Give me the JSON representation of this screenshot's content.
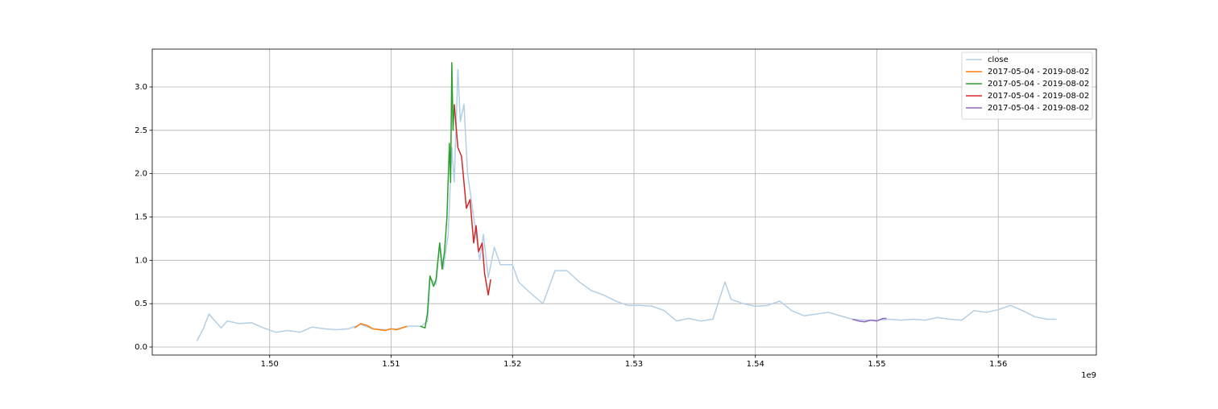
{
  "chart_data": {
    "type": "line",
    "x_offset_label": "1e9",
    "xlim": [
      1.49033,
      1.56808
    ],
    "ylim": [
      -0.0929,
      3.4365
    ],
    "xticks": [
      {
        "value": 1.5,
        "label": "1.50"
      },
      1.51,
      1.52,
      1.53,
      1.54,
      1.55,
      1.56
    ],
    "yticks": [
      {
        "value": 0,
        "label": "0.0"
      },
      0.5,
      {
        "value": 1,
        "label": "1.0"
      },
      1.5,
      {
        "value": 2,
        "label": "2.0"
      },
      2.5,
      {
        "value": 3,
        "label": "3.0"
      }
    ],
    "grid": true,
    "legend": "upper right",
    "series": [
      {
        "name": "close",
        "color": "#b3cfe6",
        "x": [
          1.494,
          1.4945,
          1.495,
          1.4955,
          1.496,
          1.4965,
          1.4975,
          1.4985,
          1.4995,
          1.5005,
          1.5015,
          1.5025,
          1.5035,
          1.5045,
          1.5055,
          1.5065,
          1.5075,
          1.5085,
          1.5095,
          1.5105,
          1.5115,
          1.5125,
          1.513,
          1.5132,
          1.5137,
          1.514,
          1.5143,
          1.5147,
          1.515,
          1.5152,
          1.5155,
          1.5157,
          1.516,
          1.5163,
          1.5167,
          1.517,
          1.5173,
          1.5176,
          1.518,
          1.5185,
          1.519,
          1.52,
          1.5205,
          1.5215,
          1.5225,
          1.5235,
          1.5245,
          1.5255,
          1.5265,
          1.5275,
          1.5285,
          1.5295,
          1.5305,
          1.5315,
          1.5325,
          1.5335,
          1.5345,
          1.5355,
          1.5365,
          1.5375,
          1.538,
          1.539,
          1.54,
          1.541,
          1.542,
          1.543,
          1.544,
          1.545,
          1.546,
          1.547,
          1.548,
          1.549,
          1.55,
          1.551,
          1.552,
          1.553,
          1.554,
          1.555,
          1.556,
          1.557,
          1.558,
          1.559,
          1.56,
          1.561,
          1.562,
          1.563,
          1.564,
          1.5648
        ],
        "values": [
          0.07,
          0.2,
          0.38,
          0.3,
          0.22,
          0.3,
          0.27,
          0.28,
          0.22,
          0.17,
          0.19,
          0.17,
          0.23,
          0.21,
          0.2,
          0.21,
          0.26,
          0.21,
          0.2,
          0.21,
          0.24,
          0.24,
          0.3,
          0.8,
          0.72,
          1.2,
          0.9,
          1.3,
          2.3,
          1.9,
          3.2,
          2.6,
          2.8,
          2.0,
          1.6,
          1.3,
          1.0,
          1.3,
          0.8,
          1.15,
          0.95,
          0.95,
          0.75,
          0.62,
          0.5,
          0.88,
          0.88,
          0.75,
          0.65,
          0.6,
          0.53,
          0.48,
          0.48,
          0.47,
          0.42,
          0.3,
          0.33,
          0.3,
          0.32,
          0.75,
          0.55,
          0.5,
          0.47,
          0.48,
          0.53,
          0.42,
          0.36,
          0.38,
          0.4,
          0.36,
          0.32,
          0.31,
          0.31,
          0.32,
          0.31,
          0.32,
          0.31,
          0.34,
          0.32,
          0.31,
          0.42,
          0.4,
          0.43,
          0.48,
          0.42,
          0.35,
          0.32,
          0.32
        ]
      },
      {
        "name": "2017-05-04 - 2019-08-02",
        "color": "#ff7f0e",
        "x": [
          1.507,
          1.5075,
          1.508,
          1.5085,
          1.509,
          1.5095,
          1.51,
          1.5105,
          1.5113
        ],
        "values": [
          0.22,
          0.27,
          0.25,
          0.21,
          0.2,
          0.19,
          0.21,
          0.2,
          0.24
        ]
      },
      {
        "name": "2017-05-04 - 2019-08-02",
        "color": "#2ca02c",
        "x": [
          1.5124,
          1.5128,
          1.513,
          1.5132,
          1.5135,
          1.5137,
          1.514,
          1.5142,
          1.5144,
          1.5146,
          1.5148,
          1.5149,
          1.515,
          1.5151,
          1.5152
        ],
        "values": [
          0.24,
          0.22,
          0.4,
          0.82,
          0.7,
          0.78,
          1.2,
          0.9,
          1.1,
          1.5,
          2.35,
          1.9,
          3.28,
          2.5,
          2.8
        ]
      },
      {
        "name": "2017-05-04 - 2019-08-02",
        "color": "#d62728",
        "x": [
          1.5152,
          1.5155,
          1.5158,
          1.516,
          1.5162,
          1.5165,
          1.5168,
          1.517,
          1.5172,
          1.5175,
          1.5177,
          1.518,
          1.5182
        ],
        "values": [
          2.8,
          2.3,
          2.2,
          1.9,
          1.6,
          1.7,
          1.2,
          1.4,
          1.1,
          1.2,
          0.85,
          0.6,
          0.78
        ]
      },
      {
        "name": "2017-05-04 - 2019-08-02",
        "color": "#9467bd",
        "x": [
          1.548,
          1.5485,
          1.549,
          1.5495,
          1.55,
          1.5505,
          1.5508
        ],
        "values": [
          0.32,
          0.3,
          0.29,
          0.31,
          0.3,
          0.33,
          0.33
        ]
      }
    ]
  }
}
